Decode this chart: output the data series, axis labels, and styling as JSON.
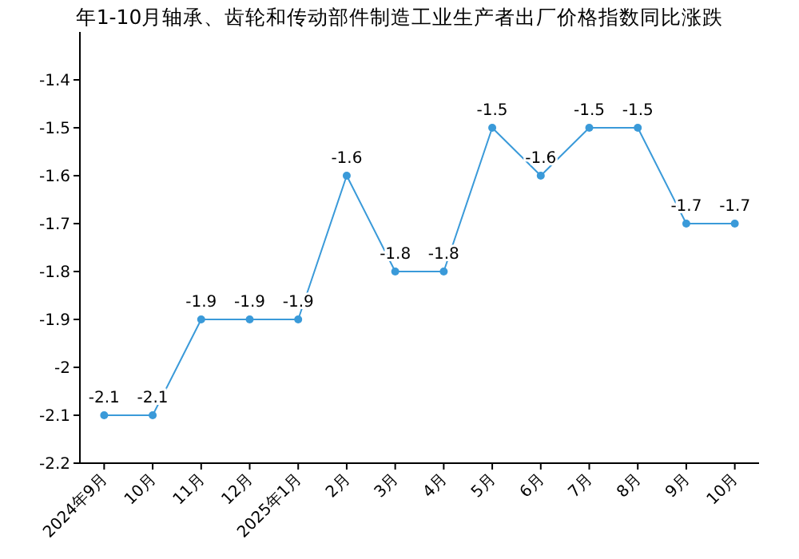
{
  "chart_data": {
    "type": "line",
    "title": "年1-10月轴承、齿轮和传动部件制造工业生产者出厂价格指数同比涨跌",
    "categories": [
      "2024年9月",
      "10月",
      "11月",
      "12月",
      "2025年1月",
      "2月",
      "3月",
      "4月",
      "5月",
      "6月",
      "7月",
      "8月",
      "9月",
      "10月"
    ],
    "series": [
      {
        "color": "#3a9ad9",
        "values": [
          -2.1,
          -2.1,
          -1.9,
          -1.9,
          -1.9,
          -1.6,
          -1.8,
          -1.8,
          -1.5,
          -1.6,
          -1.5,
          -1.5,
          -1.7,
          -1.7
        ]
      }
    ],
    "ylim": [
      -2.2,
      -1.3
    ],
    "yticks": [
      -2.2,
      -2.1,
      -2,
      -1.9,
      -1.8,
      -1.7,
      -1.6,
      -1.5,
      -1.4
    ],
    "data_labels": true,
    "marker": "circle",
    "grid": false
  }
}
